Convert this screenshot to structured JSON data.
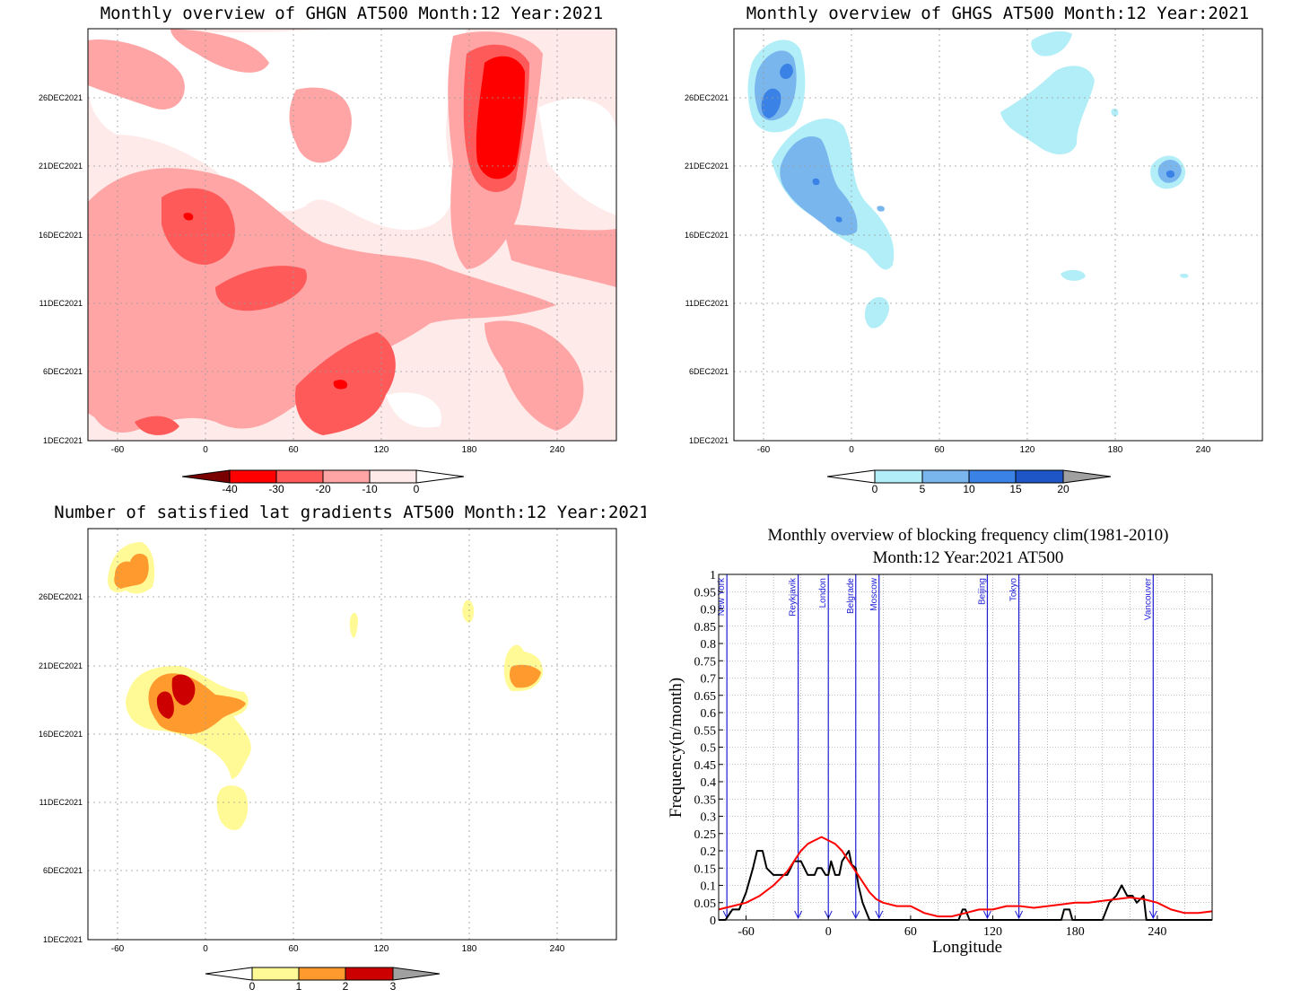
{
  "panels": {
    "ghgn": {
      "title": "Monthly overview of GHGN AT500 Month:12 Year:2021",
      "y_ticks": [
        "1DEC2021",
        "6DEC2021",
        "11DEC2021",
        "16DEC2021",
        "21DEC2021",
        "26DEC2021"
      ],
      "x_ticks": [
        "-60",
        "0",
        "60",
        "120",
        "180",
        "240"
      ],
      "colorbar": {
        "labels": [
          "-40",
          "-30",
          "-20",
          "-10",
          "0"
        ],
        "colors": [
          "#7a0000",
          "#ff0000",
          "#ff5a5a",
          "#ffa5a5",
          "#ffeaea"
        ]
      }
    },
    "ghgs": {
      "title": "Monthly overview of GHGS AT500 Month:12 Year:2021",
      "y_ticks": [
        "1DEC2021",
        "6DEC2021",
        "11DEC2021",
        "16DEC2021",
        "21DEC2021",
        "26DEC2021"
      ],
      "x_ticks": [
        "-60",
        "0",
        "60",
        "120",
        "180",
        "240"
      ],
      "colorbar": {
        "labels": [
          "0",
          "5",
          "10",
          "15",
          "20"
        ],
        "colors": [
          "#b2eef7",
          "#7ab6ee",
          "#3a82e6",
          "#1e56c8",
          "#a0a0a0"
        ]
      }
    },
    "gradients": {
      "title": "Number of satisfied lat gradients AT500 Month:12 Year:2021",
      "y_ticks": [
        "1DEC2021",
        "6DEC2021",
        "11DEC2021",
        "16DEC2021",
        "21DEC2021",
        "26DEC2021"
      ],
      "x_ticks": [
        "-60",
        "0",
        "60",
        "120",
        "180",
        "240"
      ],
      "colorbar": {
        "labels": [
          "0",
          "1",
          "2",
          "3"
        ],
        "colors": [
          "#fffa96",
          "#ff9a2e",
          "#cc0000",
          "#a0a0a0"
        ]
      }
    },
    "blocking": {
      "title_line1": "Monthly overview of blocking frequency clim(1981-2010)",
      "title_line2": "Month:12 Year:2021  AT500",
      "xlabel": "Longitude",
      "ylabel": "Frequency(n/month)"
    }
  },
  "chart_data": [
    {
      "type": "heatmap",
      "title": "Monthly overview of GHGN AT500 Month:12 Year:2021",
      "x_range": [
        -80,
        280
      ],
      "y_range": [
        "1DEC2021",
        "31DEC2021"
      ],
      "x_ticks": [
        -60,
        0,
        60,
        120,
        180,
        240
      ],
      "levels": [
        -40,
        -30,
        -20,
        -10,
        0
      ],
      "min_value_approx": -40,
      "grid": true,
      "colorbar_position": "bottom"
    },
    {
      "type": "heatmap",
      "title": "Monthly overview of GHGS AT500 Month:12 Year:2021",
      "x_range": [
        -80,
        280
      ],
      "y_range": [
        "1DEC2021",
        "31DEC2021"
      ],
      "x_ticks": [
        -60,
        0,
        60,
        120,
        180,
        240
      ],
      "levels": [
        0,
        5,
        10,
        15,
        20
      ],
      "max_value_approx": 15,
      "grid": true,
      "colorbar_position": "bottom"
    },
    {
      "type": "heatmap",
      "title": "Number of satisfied lat gradients AT500 Month:12 Year:2021",
      "x_range": [
        -80,
        280
      ],
      "y_range": [
        "1DEC2021",
        "31DEC2021"
      ],
      "x_ticks": [
        -60,
        0,
        60,
        120,
        180,
        240
      ],
      "levels": [
        0,
        1,
        2,
        3
      ],
      "grid": true,
      "colorbar_position": "bottom"
    },
    {
      "type": "line",
      "title": "Monthly overview of blocking frequency clim(1981-2010) Month:12 Year:2021  AT500",
      "xlabel": "Longitude",
      "ylabel": "Frequency(n/month)",
      "xlim": [
        -80,
        280
      ],
      "ylim": [
        0,
        1
      ],
      "x_ticks": [
        -60,
        0,
        60,
        120,
        180,
        240
      ],
      "y_ticks": [
        "0",
        "0.05",
        "0.1",
        "0.15",
        "0.2",
        "0.25",
        "0.3",
        "0.35",
        "0.4",
        "0.45",
        "0.5",
        "0.55",
        "0.6",
        "0.65",
        "0.7",
        "0.75",
        "0.8",
        "0.85",
        "0.9",
        "0.95",
        "1"
      ],
      "grid": true,
      "series": [
        {
          "color": "#000000",
          "x": [
            -80,
            -75,
            -70,
            -65,
            -60,
            -55,
            -52,
            -48,
            -45,
            -40,
            -35,
            -30,
            -25,
            -20,
            -15,
            -10,
            -8,
            -5,
            -2,
            0,
            2,
            5,
            8,
            10,
            15,
            17,
            20,
            22,
            25,
            30,
            33,
            38,
            60,
            95,
            98,
            100,
            103,
            105,
            170,
            172,
            174,
            176,
            178,
            182,
            195,
            200,
            205,
            210,
            214,
            218,
            222,
            225,
            230,
            232,
            235,
            280
          ],
          "y": [
            0,
            0,
            0.03,
            0.03,
            0.08,
            0.15,
            0.2,
            0.2,
            0.15,
            0.13,
            0.13,
            0.13,
            0.17,
            0.17,
            0.13,
            0.13,
            0.15,
            0.15,
            0.13,
            0.13,
            0.17,
            0.13,
            0.13,
            0.17,
            0.2,
            0.16,
            0.15,
            0.1,
            0.05,
            0,
            0,
            0,
            0,
            0,
            0.03,
            0.03,
            0,
            0,
            0,
            0.03,
            0.03,
            0.03,
            0,
            0,
            0,
            0,
            0.05,
            0.07,
            0.1,
            0.07,
            0.07,
            0.05,
            0.07,
            0,
            0,
            0
          ]
        },
        {
          "color": "#ff0000",
          "x": [
            -80,
            -70,
            -60,
            -50,
            -40,
            -35,
            -30,
            -25,
            -20,
            -15,
            -10,
            -5,
            0,
            5,
            10,
            15,
            20,
            25,
            30,
            35,
            40,
            50,
            60,
            70,
            80,
            90,
            100,
            110,
            120,
            130,
            140,
            150,
            160,
            170,
            180,
            190,
            200,
            210,
            220,
            230,
            240,
            250,
            260,
            270,
            280
          ],
          "y": [
            0.03,
            0.04,
            0.05,
            0.07,
            0.1,
            0.12,
            0.14,
            0.17,
            0.2,
            0.22,
            0.23,
            0.24,
            0.23,
            0.22,
            0.2,
            0.17,
            0.14,
            0.11,
            0.08,
            0.06,
            0.05,
            0.04,
            0.04,
            0.02,
            0.01,
            0.01,
            0.02,
            0.03,
            0.03,
            0.04,
            0.04,
            0.035,
            0.04,
            0.045,
            0.05,
            0.05,
            0.055,
            0.06,
            0.065,
            0.06,
            0.05,
            0.03,
            0.02,
            0.02,
            0.025
          ]
        }
      ],
      "cities": [
        {
          "name": "New York",
          "lon": -74
        },
        {
          "name": "Reykjavik",
          "lon": -22
        },
        {
          "name": "London",
          "lon": 0
        },
        {
          "name": "Belgrade",
          "lon": 20
        },
        {
          "name": "Moscow",
          "lon": 37
        },
        {
          "name": "Beijing",
          "lon": 116
        },
        {
          "name": "Tokyo",
          "lon": 139
        },
        {
          "name": "Vancouver",
          "lon": 237
        }
      ]
    }
  ]
}
